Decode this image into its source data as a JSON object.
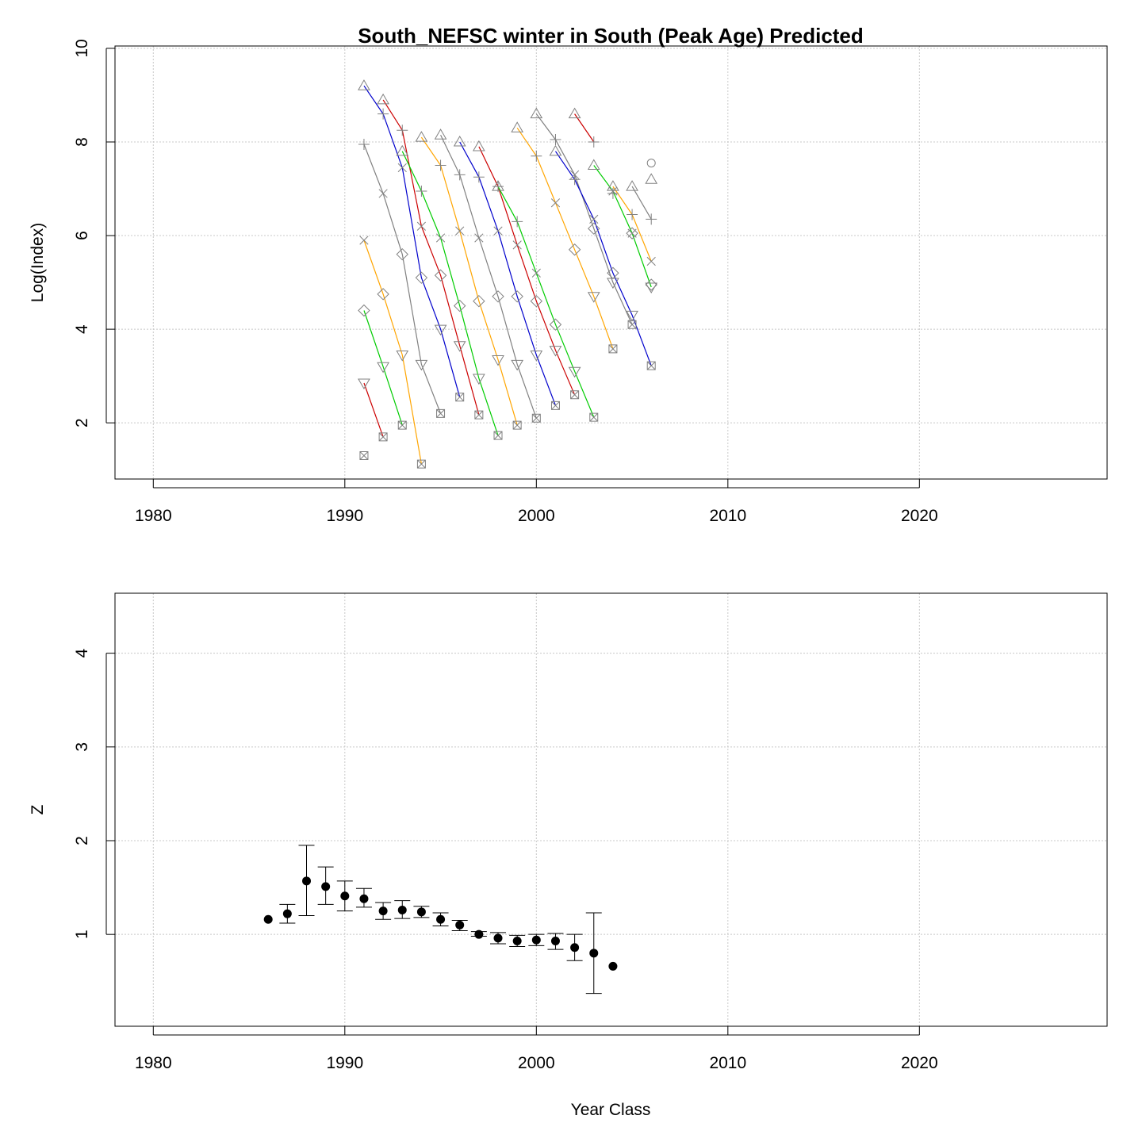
{
  "chart_data": [
    {
      "type": "line",
      "title": "South_NEFSC winter in South (Peak Age) Predicted",
      "xlabel": "",
      "ylabel": "Log(Index)",
      "xlim": [
        1978,
        2029.8
      ],
      "ylim": [
        0.8,
        10.05
      ],
      "xticks": [
        1980,
        1990,
        2000,
        2010,
        2020
      ],
      "yticks": [
        2,
        4,
        6,
        8,
        10
      ],
      "grid": true,
      "legend": "none",
      "point_marks": [
        {
          "symbol": "triangle",
          "color": "#808080",
          "points": [
            [
              1991,
              9.2
            ],
            [
              1992,
              8.9
            ],
            [
              1993,
              7.8
            ],
            [
              1994,
              8.1
            ],
            [
              1995,
              8.15
            ],
            [
              1996,
              8.0
            ],
            [
              1997,
              7.9
            ],
            [
              1998,
              7.05
            ],
            [
              1999,
              8.3
            ],
            [
              2000,
              8.6
            ],
            [
              2001,
              7.8
            ],
            [
              2002,
              8.6
            ],
            [
              2003,
              7.5
            ],
            [
              2004,
              7.05
            ],
            [
              2005,
              7.05
            ],
            [
              2006,
              7.2
            ]
          ]
        },
        {
          "symbol": "plus",
          "color": "#808080",
          "points": [
            [
              1991,
              7.95
            ],
            [
              1992,
              8.6
            ],
            [
              1993,
              8.25
            ],
            [
              1994,
              6.95
            ],
            [
              1995,
              7.5
            ],
            [
              1996,
              7.3
            ],
            [
              1997,
              7.25
            ],
            [
              1998,
              7.05
            ],
            [
              1999,
              6.3
            ],
            [
              2000,
              7.7
            ],
            [
              2001,
              8.05
            ],
            [
              2002,
              7.2
            ],
            [
              2003,
              8.0
            ],
            [
              2004,
              6.9
            ],
            [
              2005,
              6.45
            ],
            [
              2006,
              6.35
            ]
          ]
        },
        {
          "symbol": "cross",
          "color": "#808080",
          "points": [
            [
              1991,
              5.9
            ],
            [
              1992,
              6.9
            ],
            [
              1993,
              7.45
            ],
            [
              1994,
              6.2
            ],
            [
              1995,
              5.95
            ],
            [
              1996,
              6.1
            ],
            [
              1997,
              5.95
            ],
            [
              1998,
              6.1
            ],
            [
              1999,
              5.8
            ],
            [
              2000,
              5.2
            ],
            [
              2001,
              6.7
            ],
            [
              2002,
              7.3
            ],
            [
              2003,
              6.35
            ],
            [
              2004,
              6.95
            ],
            [
              2005,
              6.05
            ],
            [
              2006,
              5.45
            ]
          ]
        },
        {
          "symbol": "diamond",
          "color": "#808080",
          "points": [
            [
              1991,
              4.4
            ],
            [
              1992,
              4.75
            ],
            [
              1993,
              5.6
            ],
            [
              1994,
              5.1
            ],
            [
              1995,
              5.15
            ],
            [
              1996,
              4.5
            ],
            [
              1997,
              4.6
            ],
            [
              1998,
              4.7
            ],
            [
              1999,
              4.7
            ],
            [
              2000,
              4.6
            ],
            [
              2001,
              4.1
            ],
            [
              2002,
              5.7
            ],
            [
              2003,
              6.15
            ],
            [
              2004,
              5.2
            ],
            [
              2005,
              6.05
            ],
            [
              2006,
              4.95
            ]
          ]
        },
        {
          "symbol": "triangle-down",
          "color": "#808080",
          "points": [
            [
              1991,
              2.85
            ],
            [
              1992,
              3.2
            ],
            [
              1993,
              3.45
            ],
            [
              1994,
              3.25
            ],
            [
              1995,
              4.0
            ],
            [
              1996,
              3.65
            ],
            [
              1997,
              2.95
            ],
            [
              1998,
              3.35
            ],
            [
              1999,
              3.25
            ],
            [
              2000,
              3.45
            ],
            [
              2001,
              3.55
            ],
            [
              2002,
              3.1
            ],
            [
              2003,
              4.7
            ],
            [
              2004,
              5.0
            ],
            [
              2005,
              4.3
            ],
            [
              2006,
              4.9
            ]
          ]
        },
        {
          "symbol": "boxcross",
          "color": "#808080",
          "points": [
            [
              1991,
              1.3
            ],
            [
              1992,
              1.7
            ],
            [
              1993,
              1.95
            ],
            [
              1994,
              1.12
            ],
            [
              1995,
              2.2
            ],
            [
              1996,
              2.55
            ],
            [
              1997,
              2.17
            ],
            [
              1998,
              1.73
            ],
            [
              1999,
              1.95
            ],
            [
              2000,
              2.1
            ],
            [
              2001,
              2.37
            ],
            [
              2002,
              2.6
            ],
            [
              2003,
              2.12
            ],
            [
              2004,
              3.58
            ],
            [
              2005,
              4.1
            ],
            [
              2006,
              3.22
            ]
          ]
        },
        {
          "symbol": "circle",
          "color": "#808080",
          "points": [
            [
              2006,
              7.55
            ]
          ]
        }
      ],
      "series": [
        {
          "color": "#cc0000",
          "x": [
            1991,
            1992
          ],
          "values": [
            2.85,
            1.7
          ]
        },
        {
          "color": "#00cc00",
          "x": [
            1991,
            1992,
            1993
          ],
          "values": [
            4.4,
            3.2,
            1.95
          ]
        },
        {
          "color": "#ffa500",
          "x": [
            1991,
            1992,
            1993,
            1994
          ],
          "values": [
            5.9,
            4.75,
            3.45,
            1.12
          ]
        },
        {
          "color": "#808080",
          "x": [
            1991,
            1992,
            1993,
            1994,
            1995
          ],
          "values": [
            7.95,
            6.9,
            5.6,
            3.25,
            2.2
          ]
        },
        {
          "color": "#0000cc",
          "x": [
            1991,
            1992,
            1993,
            1994,
            1995,
            1996
          ],
          "values": [
            9.2,
            8.6,
            7.45,
            5.1,
            4.0,
            2.55
          ]
        },
        {
          "color": "#cc0000",
          "x": [
            1992,
            1993,
            1994,
            1995,
            1996,
            1997
          ],
          "values": [
            8.9,
            8.25,
            6.2,
            5.15,
            3.65,
            2.17
          ]
        },
        {
          "color": "#00cc00",
          "x": [
            1993,
            1994,
            1995,
            1996,
            1997,
            1998
          ],
          "values": [
            7.8,
            6.95,
            5.95,
            4.5,
            2.95,
            1.73
          ]
        },
        {
          "color": "#ffa500",
          "x": [
            1994,
            1995,
            1996,
            1997,
            1998,
            1999
          ],
          "values": [
            8.1,
            7.5,
            6.1,
            4.6,
            3.35,
            1.95
          ]
        },
        {
          "color": "#808080",
          "x": [
            1995,
            1996,
            1997,
            1998,
            1999,
            2000
          ],
          "values": [
            8.15,
            7.3,
            5.95,
            4.7,
            3.25,
            2.1
          ]
        },
        {
          "color": "#0000cc",
          "x": [
            1996,
            1997,
            1998,
            1999,
            2000,
            2001
          ],
          "values": [
            8.0,
            7.25,
            6.1,
            4.7,
            3.45,
            2.37
          ]
        },
        {
          "color": "#cc0000",
          "x": [
            1997,
            1998,
            1999,
            2000,
            2001,
            2002
          ],
          "values": [
            7.9,
            7.05,
            5.8,
            4.6,
            3.55,
            2.6
          ]
        },
        {
          "color": "#00cc00",
          "x": [
            1998,
            1999,
            2000,
            2001,
            2002,
            2003
          ],
          "values": [
            7.05,
            6.3,
            5.2,
            4.1,
            3.1,
            2.12
          ]
        },
        {
          "color": "#ffa500",
          "x": [
            1999,
            2000,
            2001,
            2002,
            2003,
            2004
          ],
          "values": [
            8.3,
            7.7,
            6.7,
            5.7,
            4.7,
            3.58
          ]
        },
        {
          "color": "#808080",
          "x": [
            2000,
            2001,
            2002,
            2003,
            2004,
            2005
          ],
          "values": [
            8.6,
            8.05,
            7.3,
            6.15,
            5.0,
            4.1
          ]
        },
        {
          "color": "#0000cc",
          "x": [
            2001,
            2002,
            2003,
            2004,
            2005,
            2006
          ],
          "values": [
            7.8,
            7.2,
            6.35,
            5.2,
            4.3,
            3.22
          ]
        },
        {
          "color": "#cc0000",
          "x": [
            2002,
            2003
          ],
          "values": [
            8.6,
            8.0
          ]
        },
        {
          "color": "#00cc00",
          "x": [
            2003,
            2004,
            2005,
            2006
          ],
          "values": [
            7.5,
            6.95,
            6.05,
            4.9
          ]
        },
        {
          "color": "#ffa500",
          "x": [
            2004,
            2005,
            2006
          ],
          "values": [
            7.05,
            6.45,
            5.45
          ]
        },
        {
          "color": "#808080",
          "x": [
            2005,
            2006
          ],
          "values": [
            7.05,
            6.35
          ]
        }
      ]
    },
    {
      "type": "scatter",
      "title": "",
      "xlabel": "Year Class",
      "ylabel": "Z",
      "xlim": [
        1978,
        2029.8
      ],
      "ylim": [
        0.02,
        4.64
      ],
      "xticks": [
        1980,
        1990,
        2000,
        2010,
        2020
      ],
      "yticks": [
        1,
        2,
        3,
        4
      ],
      "grid": true,
      "legend": "none",
      "series": [
        {
          "x": [
            1986,
            1987,
            1988,
            1989,
            1990,
            1991,
            1992,
            1993,
            1994,
            1995,
            1996,
            1997,
            1998,
            1999,
            2000,
            2001,
            2002,
            2003,
            2004
          ],
          "values": [
            1.16,
            1.22,
            1.57,
            1.51,
            1.41,
            1.38,
            1.25,
            1.26,
            1.24,
            1.16,
            1.1,
            1.0,
            0.96,
            0.93,
            0.94,
            0.93,
            0.86,
            0.8,
            0.66
          ],
          "lower": [
            null,
            1.12,
            1.2,
            1.32,
            1.25,
            1.29,
            1.16,
            1.17,
            1.18,
            1.09,
            1.04,
            0.98,
            0.9,
            0.87,
            0.88,
            0.84,
            0.72,
            0.37,
            null
          ],
          "upper": [
            null,
            1.32,
            1.95,
            1.72,
            1.57,
            1.49,
            1.34,
            1.36,
            1.3,
            1.23,
            1.15,
            1.03,
            1.02,
            0.99,
            1.0,
            1.01,
            1.0,
            1.23,
            null
          ]
        }
      ]
    }
  ]
}
